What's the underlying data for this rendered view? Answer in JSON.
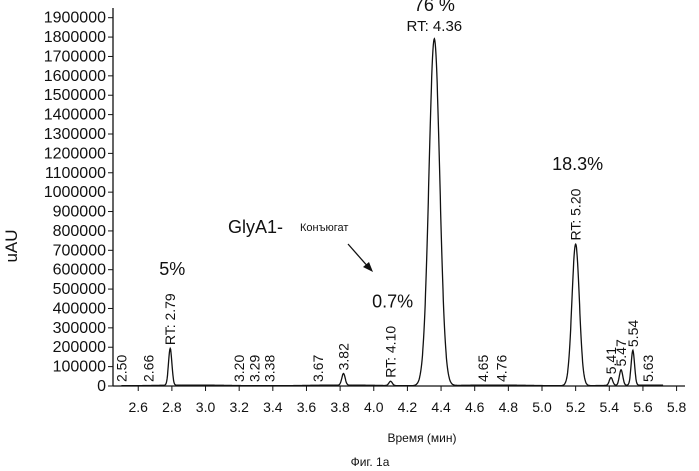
{
  "chart_data": {
    "type": "line",
    "xlabel": "Время (мин)",
    "ylabel": "uAU",
    "caption": "Фиг. 1a",
    "xlim": [
      2.45,
      5.85
    ],
    "ylim": [
      0,
      1950000
    ],
    "xticks": [
      "2.6",
      "2.8",
      "3.0",
      "3.2",
      "3.4",
      "3.6",
      "3.8",
      "4.0",
      "4.2",
      "4.4",
      "4.6",
      "4.8",
      "5.0",
      "5.2",
      "5.4",
      "5.6",
      "5.8"
    ],
    "yticks": [
      "0",
      "100000",
      "200000",
      "300000",
      "400000",
      "500000",
      "600000",
      "700000",
      "800000",
      "900000",
      "1000000",
      "1100000",
      "1200000",
      "1300000",
      "1400000",
      "1500000",
      "1600000",
      "1700000",
      "1800000",
      "1900000"
    ],
    "peaks": [
      {
        "rt": 2.5,
        "label": "2.50",
        "height": 0
      },
      {
        "rt": 2.66,
        "label": "2.66",
        "height": 0
      },
      {
        "rt": 2.79,
        "label": "RT: 2.79",
        "height": 190000,
        "percent": "5%"
      },
      {
        "rt": 3.2,
        "label": "3.20",
        "height": 0
      },
      {
        "rt": 3.29,
        "label": "3.29",
        "height": 0
      },
      {
        "rt": 3.38,
        "label": "3.38",
        "height": 0
      },
      {
        "rt": 3.67,
        "label": "3.67",
        "height": 0
      },
      {
        "rt": 3.82,
        "label": "3.82",
        "height": 60000
      },
      {
        "rt": 4.1,
        "label": "RT: 4.10",
        "height": 22000,
        "percent": "0.7%"
      },
      {
        "rt": 4.36,
        "label": "RT: 4.36",
        "height": 1790000,
        "percent": "76 %"
      },
      {
        "rt": 4.65,
        "label": "4.65",
        "height": 0
      },
      {
        "rt": 4.76,
        "label": "4.76",
        "height": 0
      },
      {
        "rt": 5.2,
        "label": "RT: 5.20",
        "height": 730000,
        "percent": "18.3%"
      },
      {
        "rt": 5.41,
        "label": "5.41",
        "height": 40000
      },
      {
        "rt": 5.47,
        "label": "5.47",
        "height": 80000
      },
      {
        "rt": 5.54,
        "label": "5.54",
        "height": 180000
      },
      {
        "rt": 5.63,
        "label": "5.63",
        "height": 0
      }
    ],
    "annotations": {
      "conjugate_prefix": "GlyA1-",
      "conjugate_word": "Конъюгат"
    }
  }
}
